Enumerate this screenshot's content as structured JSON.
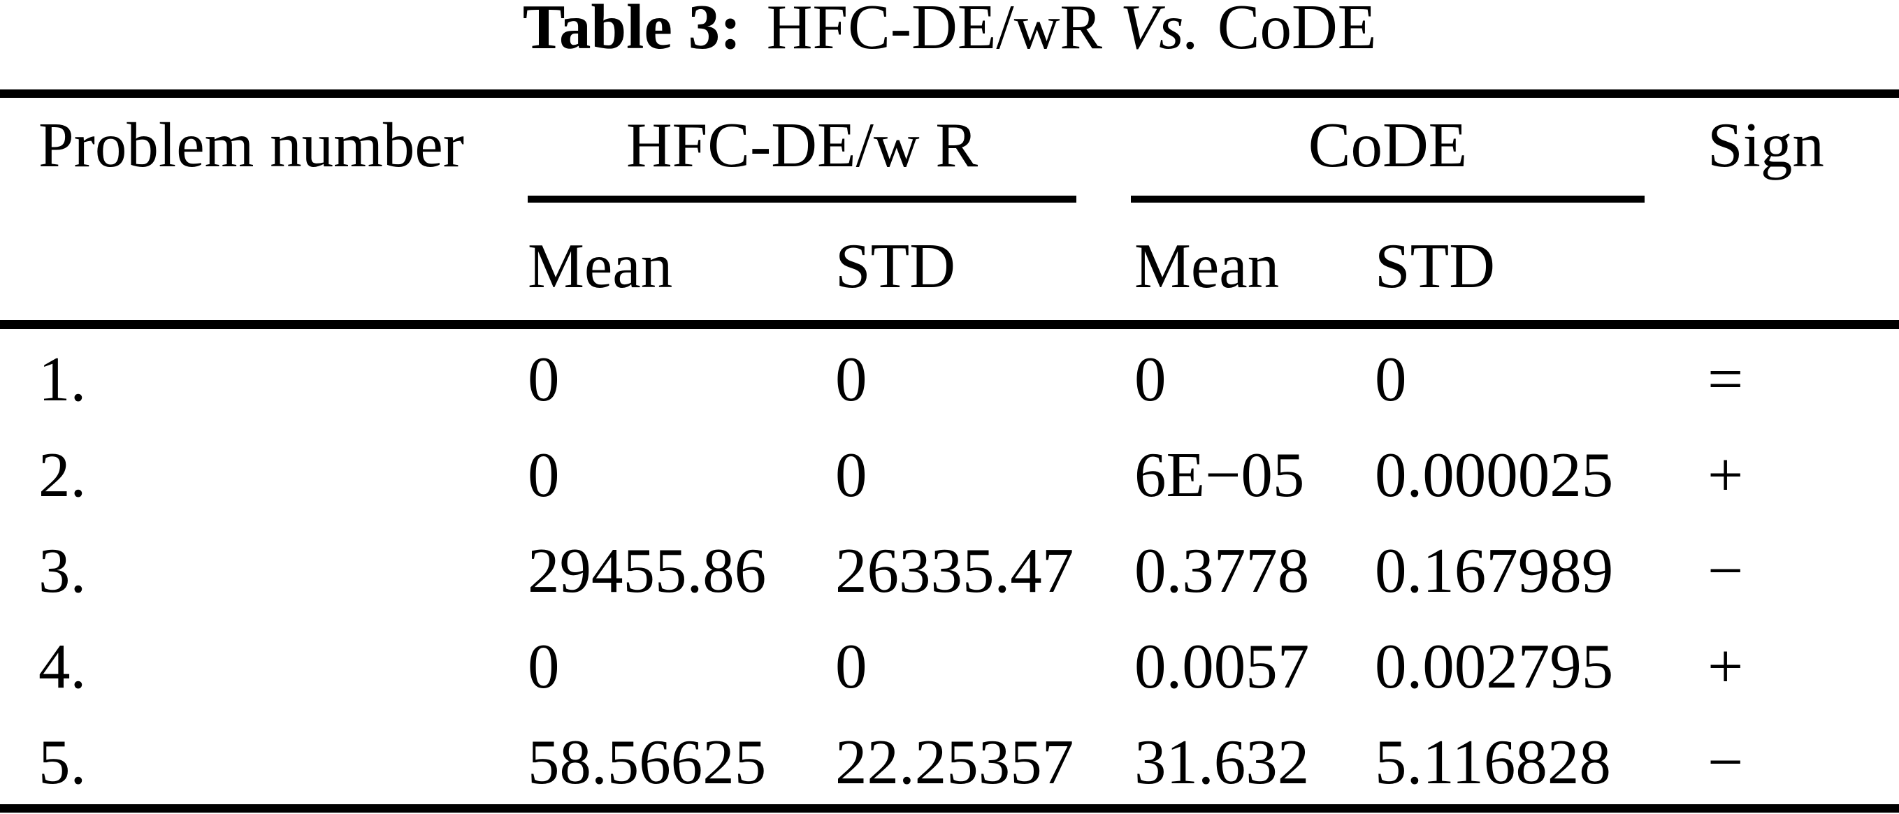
{
  "title": {
    "label": "Table 3:",
    "part1": "HFC-DE/wR",
    "vs": "Vs.",
    "part2": "CoDE"
  },
  "table": {
    "col_problem": "Problem number",
    "group_hfc": "HFC-DE/w R",
    "group_code": "CoDE",
    "col_sign": "Sign",
    "sub_hfc_mean": "Mean",
    "sub_hfc_std": "STD",
    "sub_code_mean": "Mean",
    "sub_code_std": "STD",
    "rows": [
      {
        "problem": "1.",
        "hfc_mean": "0",
        "hfc_std": "0",
        "code_mean": "0",
        "code_std": "0",
        "sign": "="
      },
      {
        "problem": "2.",
        "hfc_mean": "0",
        "hfc_std": "0",
        "code_mean": "6E−05",
        "code_std": "0.000025",
        "sign": "+"
      },
      {
        "problem": "3.",
        "hfc_mean": "29455.86",
        "hfc_std": "26335.47",
        "code_mean": "0.3778",
        "code_std": "0.167989",
        "sign": "−"
      },
      {
        "problem": "4.",
        "hfc_mean": "0",
        "hfc_std": "0",
        "code_mean": "0.0057",
        "code_std": "0.002795",
        "sign": "+"
      },
      {
        "problem": "5.",
        "hfc_mean": "58.56625",
        "hfc_std": "22.25357",
        "code_mean": "31.632",
        "code_std": "5.116828",
        "sign": "−"
      }
    ]
  },
  "colors": {
    "text": "#000000",
    "background": "#ffffff"
  }
}
